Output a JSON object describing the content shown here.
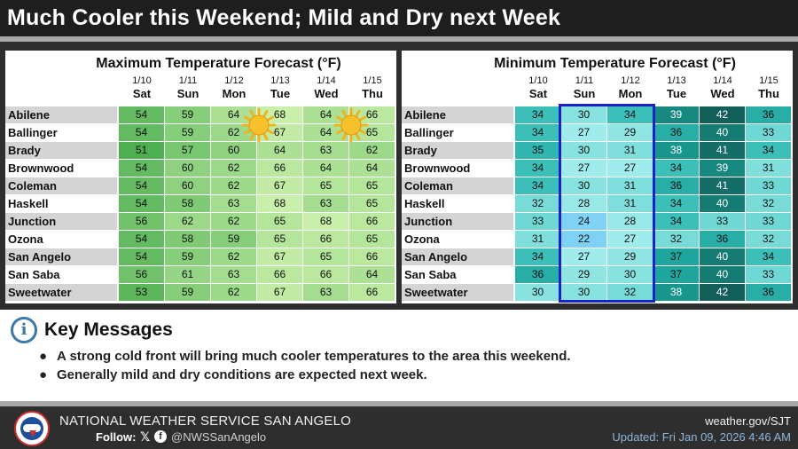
{
  "header": {
    "title": "Much Cooler this Weekend; Mild and Dry next Week"
  },
  "columns": [
    {
      "date": "1/10",
      "day": "Sat"
    },
    {
      "date": "1/11",
      "day": "Sun"
    },
    {
      "date": "1/12",
      "day": "Mon"
    },
    {
      "date": "1/13",
      "day": "Tue"
    },
    {
      "date": "1/14",
      "day": "Wed"
    },
    {
      "date": "1/15",
      "day": "Thu"
    }
  ],
  "locations": [
    "Abilene",
    "Ballinger",
    "Brady",
    "Brownwood",
    "Coleman",
    "Haskell",
    "Junction",
    "Ozona",
    "San Angelo",
    "San Saba",
    "Sweetwater"
  ],
  "max_table": {
    "title": "Maximum Temperature Forecast (°F)",
    "values": [
      [
        54,
        59,
        64,
        68,
        64,
        66
      ],
      [
        54,
        59,
        62,
        67,
        64,
        65
      ],
      [
        51,
        57,
        60,
        64,
        63,
        62
      ],
      [
        54,
        60,
        62,
        66,
        64,
        64
      ],
      [
        54,
        60,
        62,
        67,
        65,
        65
      ],
      [
        54,
        58,
        63,
        68,
        63,
        65
      ],
      [
        56,
        62,
        62,
        65,
        68,
        66
      ],
      [
        54,
        58,
        59,
        65,
        66,
        65
      ],
      [
        54,
        59,
        62,
        67,
        65,
        66
      ],
      [
        56,
        61,
        63,
        66,
        66,
        64
      ],
      [
        53,
        59,
        62,
        67,
        63,
        66
      ]
    ],
    "sun_icon": "sun-icon"
  },
  "min_table": {
    "title": "Minimum Temperature Forecast (°F)",
    "values": [
      [
        34,
        30,
        34,
        39,
        42,
        36
      ],
      [
        34,
        27,
        29,
        36,
        40,
        33
      ],
      [
        35,
        30,
        31,
        38,
        41,
        34
      ],
      [
        34,
        27,
        27,
        34,
        39,
        31
      ],
      [
        34,
        30,
        31,
        36,
        41,
        33
      ],
      [
        32,
        28,
        31,
        34,
        40,
        32
      ],
      [
        33,
        24,
        28,
        34,
        33,
        33
      ],
      [
        31,
        22,
        27,
        32,
        36,
        32
      ],
      [
        34,
        27,
        29,
        37,
        40,
        34
      ],
      [
        36,
        29,
        30,
        37,
        40,
        33
      ],
      [
        30,
        30,
        32,
        38,
        42,
        36
      ]
    ],
    "highlight_color": "#1a23c9"
  },
  "key_messages": {
    "title": "Key Messages",
    "icon": "info-icon",
    "items": [
      "A strong cold front will bring much cooler temperatures to the area this weekend.",
      "Generally mild and dry conditions are expected next week."
    ]
  },
  "footer": {
    "org": "NATIONAL WEATHER SERVICE SAN ANGELO",
    "follow_label": "Follow:",
    "handle": "@NWSSanAngelo",
    "website": "weather.gov/SJT",
    "updated": "Updated: Fri Jan 09, 2026 4:46 AM"
  }
}
